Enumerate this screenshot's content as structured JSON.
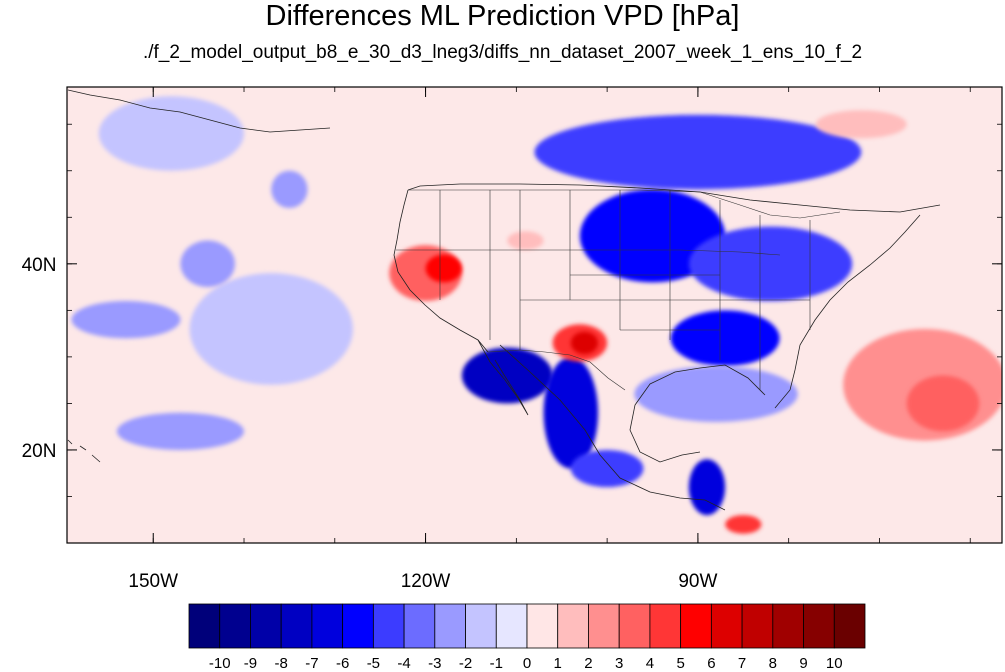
{
  "figure": {
    "title": "Differences ML Prediction VPD [hPa]",
    "subtitle": "./f_2_model_output_b8_e_30_d3_lneg3/diffs_nn_dataset_2007_week_1_ens_10_f_2"
  },
  "map": {
    "projection": "cylindrical-equidistant",
    "lon_range": [
      -159.5,
      -56.5
    ],
    "lat_range": [
      10,
      59
    ],
    "lon_ticks": [
      {
        "lon": -150,
        "label": "150W"
      },
      {
        "lon": -120,
        "label": "120W"
      },
      {
        "lon": -90,
        "label": "90W"
      }
    ],
    "lat_ticks": [
      {
        "lat": 40,
        "label": "40N"
      },
      {
        "lat": 20,
        "label": "20N"
      }
    ],
    "background_level_color": "#fde8e8",
    "field_regions": [
      {
        "name": "pacific-weak-negative-band",
        "level": -1,
        "center": [
          -137,
          33
        ],
        "radius": [
          9,
          6
        ]
      },
      {
        "name": "pacific-negative-patch-west",
        "level": -2,
        "center": [
          -153,
          34
        ],
        "radius": [
          6,
          2
        ]
      },
      {
        "name": "pacific-negative-patch-central",
        "level": -2,
        "center": [
          -144,
          40
        ],
        "radius": [
          3,
          2.5
        ]
      },
      {
        "name": "pacific-negative-patch-north",
        "level": -2,
        "center": [
          -135,
          48
        ],
        "radius": [
          2,
          2
        ]
      },
      {
        "name": "hawaii-negative",
        "level": -2,
        "center": [
          -147,
          22
        ],
        "radius": [
          7,
          2
        ]
      },
      {
        "name": "north-pacific-weak-negative",
        "level": -1,
        "center": [
          -148,
          54
        ],
        "radius": [
          8,
          4
        ]
      },
      {
        "name": "canada-negative",
        "level": -4,
        "center": [
          -90,
          52
        ],
        "radius": [
          18,
          4
        ]
      },
      {
        "name": "great-plains-negative",
        "level": -5,
        "center": [
          -95,
          43
        ],
        "radius": [
          8,
          5
        ]
      },
      {
        "name": "eastern-us-negative",
        "level": -4,
        "center": [
          -82,
          40
        ],
        "radius": [
          9,
          4
        ]
      },
      {
        "name": "southeast-us-negative",
        "level": -5,
        "center": [
          -87,
          32
        ],
        "radius": [
          6,
          3
        ]
      },
      {
        "name": "gulf-negative",
        "level": -2,
        "center": [
          -88,
          26
        ],
        "radius": [
          9,
          3
        ]
      },
      {
        "name": "baja-negative",
        "level": -7,
        "center": [
          -111,
          28
        ],
        "radius": [
          5,
          3
        ]
      },
      {
        "name": "western-mexico-negative",
        "level": -6,
        "center": [
          -104,
          24
        ],
        "radius": [
          3,
          6
        ]
      },
      {
        "name": "southern-mexico-negative",
        "level": -4,
        "center": [
          -100,
          18
        ],
        "radius": [
          4,
          2
        ]
      },
      {
        "name": "central-america-negative",
        "level": -6,
        "center": [
          -89,
          16
        ],
        "radius": [
          2,
          3
        ]
      },
      {
        "name": "great-basin-positive",
        "level": 4,
        "center": [
          -120,
          39
        ],
        "radius": [
          4,
          3
        ]
      },
      {
        "name": "nevada-positive-core",
        "level": 6,
        "center": [
          -118,
          39.5
        ],
        "radius": [
          2,
          1.5
        ]
      },
      {
        "name": "texas-positive",
        "level": 5,
        "center": [
          -103,
          31.5
        ],
        "radius": [
          3,
          2
        ]
      },
      {
        "name": "texas-positive-core",
        "level": 7,
        "center": [
          -102.5,
          31.5
        ],
        "radius": [
          1.5,
          1.2
        ]
      },
      {
        "name": "colorado-positive",
        "level": 2,
        "center": [
          -109,
          42.5
        ],
        "radius": [
          2,
          1
        ]
      },
      {
        "name": "atlantic-positive",
        "level": 3,
        "center": [
          -65,
          27
        ],
        "radius": [
          9,
          6
        ]
      },
      {
        "name": "atlantic-positive-core",
        "level": 4,
        "center": [
          -63,
          25
        ],
        "radius": [
          4,
          3
        ]
      },
      {
        "name": "atlantic-north-positive",
        "level": 2,
        "center": [
          -72,
          55
        ],
        "radius": [
          5,
          1.5
        ]
      },
      {
        "name": "panama-positive",
        "level": 5,
        "center": [
          -85,
          12
        ],
        "radius": [
          2,
          1
        ]
      }
    ]
  },
  "colorbar": {
    "levels": [
      -10,
      -9,
      -8,
      -7,
      -6,
      -5,
      -4,
      -3,
      -2,
      -1,
      0,
      1,
      2,
      3,
      4,
      5,
      6,
      7,
      8,
      9,
      10
    ],
    "labels": [
      "-10",
      "-9",
      "-8",
      "-7",
      "-6",
      "-5",
      "-4",
      "-3",
      "-2",
      "-1",
      "0",
      "1",
      "2",
      "3",
      "4",
      "5",
      "6",
      "7",
      "8",
      "9",
      "10"
    ],
    "colors": [
      "#00007a",
      "#00008f",
      "#0000a8",
      "#0000c2",
      "#0000dd",
      "#0000ff",
      "#3c3cff",
      "#6c6cff",
      "#9a9aff",
      "#c4c4ff",
      "#e6e6ff",
      "#ffe6e6",
      "#ffbdbd",
      "#ff8f8f",
      "#ff6161",
      "#ff3636",
      "#ff0000",
      "#dd0000",
      "#c00000",
      "#a00000",
      "#860000",
      "#6a0000"
    ]
  }
}
